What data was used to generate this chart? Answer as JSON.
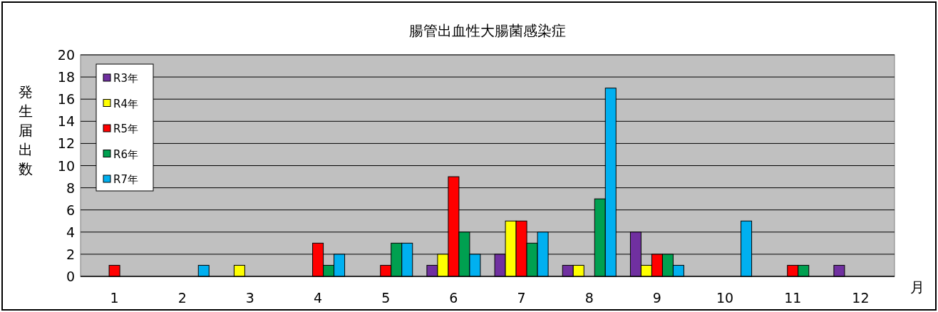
{
  "chart_data": {
    "type": "bar",
    "title": "腸管出血性大腸菌感染症",
    "xlabel": "月",
    "ylabel": "発生届出数",
    "categories": [
      "1",
      "2",
      "3",
      "4",
      "5",
      "6",
      "7",
      "8",
      "9",
      "10",
      "11",
      "12"
    ],
    "series": [
      {
        "name": "R3年",
        "color": "#7030a0",
        "values": [
          0,
          0,
          0,
          0,
          0,
          1,
          2,
          1,
          4,
          0,
          0,
          1
        ]
      },
      {
        "name": "R4年",
        "color": "#ffff00",
        "values": [
          0,
          0,
          1,
          0,
          0,
          2,
          5,
          1,
          1,
          0,
          0,
          0
        ]
      },
      {
        "name": "R5年",
        "color": "#ff0000",
        "values": [
          1,
          0,
          0,
          3,
          1,
          9,
          5,
          0,
          2,
          0,
          1,
          0
        ]
      },
      {
        "name": "R6年",
        "color": "#00a050",
        "values": [
          0,
          0,
          0,
          1,
          3,
          4,
          3,
          7,
          2,
          0,
          1,
          0
        ]
      },
      {
        "name": "R7年",
        "color": "#00b0f0",
        "values": [
          0,
          1,
          0,
          2,
          3,
          2,
          4,
          17,
          1,
          5,
          0,
          0
        ]
      }
    ],
    "ylim": [
      0,
      20
    ],
    "yticks": [
      0,
      2,
      4,
      6,
      8,
      10,
      12,
      14,
      16,
      18,
      20
    ],
    "grid": "y",
    "legend": "top left"
  }
}
